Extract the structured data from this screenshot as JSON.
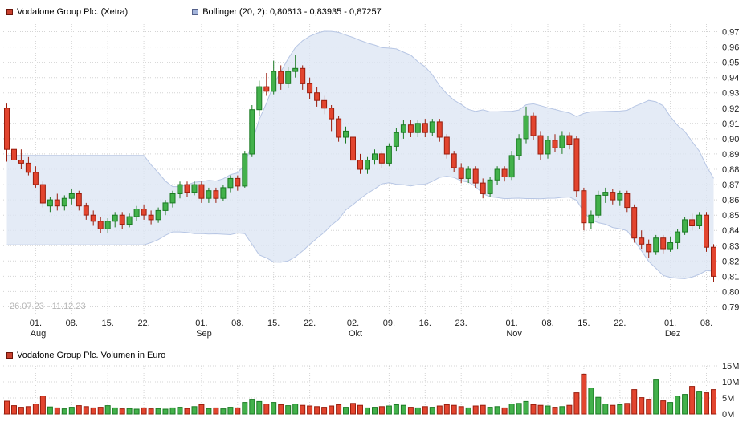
{
  "legend": {
    "price_label": "Vodafone Group Plc. (Xetra)",
    "bollinger_label": "Bollinger (20, 2): 0,80613 - 0,83935 - 0,87257",
    "volume_label": "Vodafone Group Plc. Volumen in Euro"
  },
  "watermark": "26.07.23 - 11.12.23",
  "colors": {
    "up": "#43b14b",
    "up_border": "#1b7a23",
    "down": "#e2452f",
    "down_border": "#9a1d0d",
    "band_fill": "#dde5f4",
    "band_edge": "#b7c6e4",
    "grid": "#d4d4d4",
    "swatch_price": "#c8402e",
    "swatch_price_border": "#6b150a",
    "swatch_bollinger": "#a3b4da",
    "swatch_bollinger_border": "#55618a",
    "swatch_volume": "#c8402e",
    "swatch_volume_border": "#6b150a"
  },
  "chart_data": {
    "type": "candlestick+volume",
    "title": "Vodafone Group Plc. (Xetra)",
    "date_range": "26.07.23 - 11.12.23",
    "price_axis": {
      "min": 0.79,
      "max": 0.97,
      "step": 0.01,
      "labels": [
        "0,79",
        "0,80",
        "0,81",
        "0,82",
        "0,83",
        "0,84",
        "0,85",
        "0,86",
        "0,87",
        "0,88",
        "0,89",
        "0,90",
        "0,91",
        "0,92",
        "0,93",
        "0,94",
        "0,95",
        "0,96",
        "0,97"
      ]
    },
    "volume_axis": {
      "min": 0,
      "max": 15,
      "step": 5,
      "unit": "M",
      "labels": [
        "0M",
        "5M",
        "10M",
        "15M"
      ]
    },
    "x_ticks": [
      {
        "index": 4,
        "day": "01.",
        "month": "Aug"
      },
      {
        "index": 9,
        "day": "08."
      },
      {
        "index": 14,
        "day": "15."
      },
      {
        "index": 19,
        "day": "22."
      },
      {
        "index": 27,
        "day": "01.",
        "month": "Sep"
      },
      {
        "index": 32,
        "day": "08."
      },
      {
        "index": 37,
        "day": "15."
      },
      {
        "index": 42,
        "day": "22."
      },
      {
        "index": 48,
        "day": "02.",
        "month": "Okt"
      },
      {
        "index": 53,
        "day": "09."
      },
      {
        "index": 58,
        "day": "16."
      },
      {
        "index": 63,
        "day": "23."
      },
      {
        "index": 70,
        "day": "01.",
        "month": "Nov"
      },
      {
        "index": 75,
        "day": "08."
      },
      {
        "index": 80,
        "day": "15."
      },
      {
        "index": 85,
        "day": "22."
      },
      {
        "index": 92,
        "day": "01.",
        "month": "Dez"
      },
      {
        "index": 97,
        "day": "08."
      }
    ],
    "bollinger": {
      "period": 20,
      "mult": 2,
      "current_lower": 0.80613,
      "current_middle": 0.83935,
      "current_upper": 0.87257
    },
    "ohlc": [
      [
        0.92,
        0.923,
        0.885,
        0.893
      ],
      [
        0.893,
        0.9,
        0.883,
        0.886
      ],
      [
        0.886,
        0.893,
        0.88,
        0.884
      ],
      [
        0.884,
        0.888,
        0.876,
        0.878
      ],
      [
        0.878,
        0.882,
        0.868,
        0.87
      ],
      [
        0.87,
        0.872,
        0.855,
        0.858
      ],
      [
        0.856,
        0.862,
        0.852,
        0.86
      ],
      [
        0.86,
        0.864,
        0.853,
        0.856
      ],
      [
        0.856,
        0.863,
        0.853,
        0.861
      ],
      [
        0.861,
        0.867,
        0.857,
        0.864
      ],
      [
        0.864,
        0.866,
        0.853,
        0.856
      ],
      [
        0.856,
        0.858,
        0.847,
        0.85
      ],
      [
        0.85,
        0.853,
        0.843,
        0.846
      ],
      [
        0.846,
        0.849,
        0.838,
        0.841
      ],
      [
        0.841,
        0.848,
        0.838,
        0.846
      ],
      [
        0.846,
        0.852,
        0.842,
        0.85
      ],
      [
        0.85,
        0.852,
        0.841,
        0.844
      ],
      [
        0.844,
        0.851,
        0.842,
        0.849
      ],
      [
        0.849,
        0.856,
        0.846,
        0.854
      ],
      [
        0.854,
        0.857,
        0.847,
        0.85
      ],
      [
        0.85,
        0.853,
        0.844,
        0.847
      ],
      [
        0.847,
        0.855,
        0.845,
        0.853
      ],
      [
        0.853,
        0.86,
        0.85,
        0.858
      ],
      [
        0.858,
        0.866,
        0.855,
        0.864
      ],
      [
        0.864,
        0.872,
        0.861,
        0.87
      ],
      [
        0.87,
        0.872,
        0.862,
        0.865
      ],
      [
        0.865,
        0.872,
        0.863,
        0.87
      ],
      [
        0.87,
        0.872,
        0.858,
        0.861
      ],
      [
        0.861,
        0.868,
        0.858,
        0.866
      ],
      [
        0.866,
        0.868,
        0.858,
        0.861
      ],
      [
        0.861,
        0.87,
        0.859,
        0.868
      ],
      [
        0.868,
        0.876,
        0.865,
        0.874
      ],
      [
        0.874,
        0.876,
        0.866,
        0.869
      ],
      [
        0.869,
        0.892,
        0.868,
        0.89
      ],
      [
        0.89,
        0.922,
        0.888,
        0.919
      ],
      [
        0.919,
        0.938,
        0.915,
        0.934
      ],
      [
        0.934,
        0.943,
        0.928,
        0.931
      ],
      [
        0.931,
        0.951,
        0.929,
        0.944
      ],
      [
        0.944,
        0.948,
        0.932,
        0.936
      ],
      [
        0.936,
        0.947,
        0.933,
        0.944
      ],
      [
        0.944,
        0.955,
        0.94,
        0.946
      ],
      [
        0.946,
        0.948,
        0.932,
        0.936
      ],
      [
        0.936,
        0.94,
        0.926,
        0.93
      ],
      [
        0.93,
        0.934,
        0.921,
        0.925
      ],
      [
        0.925,
        0.928,
        0.916,
        0.92
      ],
      [
        0.92,
        0.922,
        0.905,
        0.913
      ],
      [
        0.913,
        0.915,
        0.898,
        0.901
      ],
      [
        0.901,
        0.908,
        0.897,
        0.905
      ],
      [
        0.901,
        0.903,
        0.883,
        0.886
      ],
      [
        0.886,
        0.89,
        0.877,
        0.88
      ],
      [
        0.88,
        0.888,
        0.877,
        0.886
      ],
      [
        0.886,
        0.893,
        0.883,
        0.89
      ],
      [
        0.89,
        0.892,
        0.881,
        0.884
      ],
      [
        0.884,
        0.897,
        0.882,
        0.895
      ],
      [
        0.895,
        0.907,
        0.892,
        0.904
      ],
      [
        0.904,
        0.912,
        0.9,
        0.909
      ],
      [
        0.909,
        0.912,
        0.901,
        0.904
      ],
      [
        0.904,
        0.912,
        0.901,
        0.91
      ],
      [
        0.91,
        0.913,
        0.901,
        0.904
      ],
      [
        0.904,
        0.913,
        0.902,
        0.911
      ],
      [
        0.911,
        0.913,
        0.898,
        0.901
      ],
      [
        0.901,
        0.903,
        0.887,
        0.89
      ],
      [
        0.89,
        0.892,
        0.878,
        0.881
      ],
      [
        0.881,
        0.884,
        0.871,
        0.874
      ],
      [
        0.874,
        0.882,
        0.871,
        0.88
      ],
      [
        0.88,
        0.882,
        0.868,
        0.871
      ],
      [
        0.871,
        0.874,
        0.861,
        0.864
      ],
      [
        0.864,
        0.875,
        0.862,
        0.873
      ],
      [
        0.873,
        0.882,
        0.87,
        0.88
      ],
      [
        0.88,
        0.882,
        0.872,
        0.875
      ],
      [
        0.875,
        0.892,
        0.873,
        0.889
      ],
      [
        0.889,
        0.903,
        0.886,
        0.9
      ],
      [
        0.9,
        0.921,
        0.897,
        0.915
      ],
      [
        0.915,
        0.917,
        0.899,
        0.902
      ],
      [
        0.902,
        0.905,
        0.886,
        0.89
      ],
      [
        0.89,
        0.902,
        0.887,
        0.899
      ],
      [
        0.899,
        0.903,
        0.891,
        0.894
      ],
      [
        0.894,
        0.905,
        0.89,
        0.902
      ],
      [
        0.902,
        0.904,
        0.893,
        0.896
      ],
      [
        0.9,
        0.902,
        0.862,
        0.866
      ],
      [
        0.866,
        0.868,
        0.84,
        0.845
      ],
      [
        0.845,
        0.853,
        0.841,
        0.85
      ],
      [
        0.85,
        0.866,
        0.848,
        0.863
      ],
      [
        0.863,
        0.868,
        0.858,
        0.865
      ],
      [
        0.865,
        0.867,
        0.857,
        0.86
      ],
      [
        0.86,
        0.866,
        0.856,
        0.864
      ],
      [
        0.864,
        0.866,
        0.852,
        0.855
      ],
      [
        0.855,
        0.857,
        0.832,
        0.835
      ],
      [
        0.835,
        0.84,
        0.828,
        0.831
      ],
      [
        0.831,
        0.834,
        0.822,
        0.826
      ],
      [
        0.826,
        0.837,
        0.824,
        0.835
      ],
      [
        0.835,
        0.837,
        0.825,
        0.828
      ],
      [
        0.828,
        0.836,
        0.826,
        0.832
      ],
      [
        0.832,
        0.841,
        0.828,
        0.839
      ],
      [
        0.839,
        0.849,
        0.837,
        0.847
      ],
      [
        0.847,
        0.851,
        0.84,
        0.843
      ],
      [
        0.843,
        0.852,
        0.841,
        0.85
      ],
      [
        0.85,
        0.852,
        0.826,
        0.829
      ],
      [
        0.829,
        0.831,
        0.806,
        0.81
      ]
    ],
    "volumes_m": [
      4.0,
      2.6,
      2.1,
      2.3,
      3.1,
      5.6,
      2.2,
      1.9,
      1.6,
      2.1,
      2.6,
      2.3,
      1.9,
      2.1,
      2.6,
      1.9,
      1.6,
      1.7,
      1.5,
      1.9,
      1.6,
      1.7,
      1.5,
      1.9,
      2.1,
      1.7,
      2.3,
      2.9,
      1.7,
      1.9,
      1.6,
      2.1,
      1.9,
      3.6,
      4.6,
      3.9,
      3.1,
      3.6,
      2.9,
      2.6,
      3.1,
      2.7,
      2.5,
      2.3,
      2.1,
      2.5,
      2.9,
      2.1,
      3.3,
      2.7,
      1.9,
      2.1,
      2.3,
      2.5,
      2.9,
      2.7,
      2.1,
      1.9,
      2.3,
      2.1,
      2.5,
      2.9,
      2.7,
      2.3,
      1.9,
      2.5,
      2.7,
      2.1,
      2.3,
      1.9,
      3.1,
      3.3,
      3.9,
      2.9,
      2.7,
      2.5,
      2.1,
      2.3,
      2.7,
      6.6,
      12.4,
      8.1,
      5.2,
      3.1,
      2.7,
      2.9,
      3.3,
      7.6,
      5.1,
      4.6,
      10.6,
      4.1,
      3.6,
      5.6,
      6.1,
      8.6,
      7.1,
      6.6,
      7.6
    ]
  }
}
